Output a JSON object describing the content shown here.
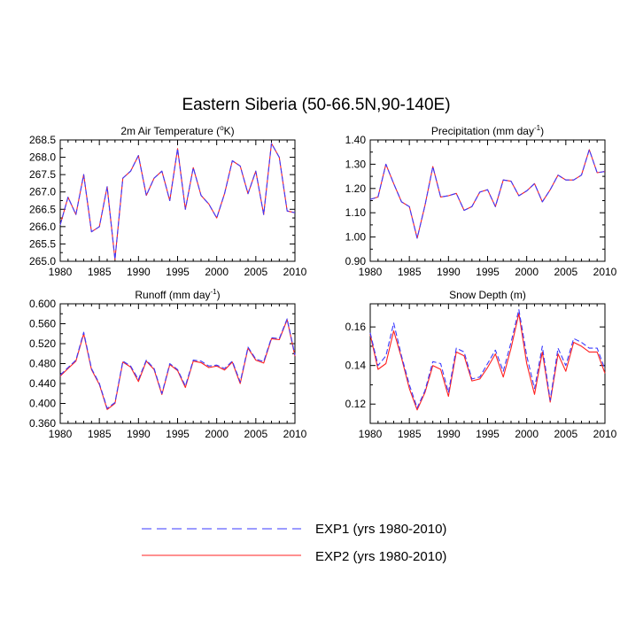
{
  "figure_title": "Eastern Siberia (50-66.5N,90-140E)",
  "colors": {
    "EXP1": "#3a3aff",
    "EXP2": "#ff2020",
    "axes": "#000000"
  },
  "legend": [
    {
      "name": "EXP1 (yrs 1980-2010)",
      "style": "dashed",
      "color": "#3a3aff"
    },
    {
      "name": "EXP2 (yrs 1980-2010)",
      "style": "solid",
      "color": "#ff2020"
    }
  ],
  "chart_data": [
    {
      "type": "line",
      "title": "2m Air Temperature (°K)",
      "title_text": "2m Air Temperature (",
      "title_sup": "o",
      "title_tail": "K)",
      "xlim": [
        1980,
        2010
      ],
      "ylim": [
        265.0,
        268.5
      ],
      "xticks": [
        1980,
        1985,
        1990,
        1995,
        2000,
        2005,
        2010
      ],
      "yticks": [
        "265.0",
        "265.5",
        "266.0",
        "266.5",
        "267.0",
        "267.5",
        "268.0",
        "268.5"
      ],
      "x": [
        1980,
        1981,
        1982,
        1983,
        1984,
        1985,
        1986,
        1987,
        1988,
        1989,
        1990,
        1991,
        1992,
        1993,
        1994,
        1995,
        1996,
        1997,
        1998,
        1999,
        2000,
        2001,
        2002,
        2003,
        2004,
        2005,
        2006,
        2007,
        2008,
        2009,
        2010
      ],
      "series": [
        {
          "name": "EXP1",
          "values": [
            266.05,
            266.85,
            266.35,
            267.5,
            265.85,
            266.0,
            267.15,
            265.05,
            267.4,
            267.6,
            268.05,
            266.9,
            267.4,
            267.6,
            266.75,
            268.25,
            266.5,
            267.7,
            266.9,
            266.65,
            266.25,
            266.95,
            267.9,
            267.75,
            266.95,
            267.6,
            266.35,
            268.4,
            268.0,
            266.45,
            266.4
          ]
        },
        {
          "name": "EXP2",
          "values": [
            266.05,
            266.85,
            266.35,
            267.5,
            265.85,
            266.0,
            267.15,
            265.05,
            267.4,
            267.6,
            268.05,
            266.9,
            267.4,
            267.6,
            266.75,
            268.25,
            266.5,
            267.7,
            266.9,
            266.65,
            266.25,
            266.95,
            267.9,
            267.75,
            266.95,
            267.6,
            266.35,
            268.4,
            268.0,
            266.45,
            266.4
          ]
        }
      ]
    },
    {
      "type": "line",
      "title": "Precipitation (mm day-1)",
      "title_text": "Precipitation (mm day",
      "title_sup": "-1",
      "title_tail": ")",
      "xlim": [
        1980,
        2010
      ],
      "ylim": [
        0.9,
        1.4
      ],
      "xticks": [
        1980,
        1985,
        1990,
        1995,
        2000,
        2005,
        2010
      ],
      "yticks": [
        "0.90",
        "1.00",
        "1.10",
        "1.20",
        "1.30",
        "1.40"
      ],
      "x": [
        1980,
        1981,
        1982,
        1983,
        1984,
        1985,
        1986,
        1987,
        1988,
        1989,
        1990,
        1991,
        1992,
        1993,
        1994,
        1995,
        1996,
        1997,
        1998,
        1999,
        2000,
        2001,
        2002,
        2003,
        2004,
        2005,
        2006,
        2007,
        2008,
        2009,
        2010
      ],
      "series": [
        {
          "name": "EXP1",
          "values": [
            1.155,
            1.165,
            1.3,
            1.22,
            1.145,
            1.125,
            0.995,
            1.13,
            1.29,
            1.165,
            1.17,
            1.18,
            1.11,
            1.125,
            1.185,
            1.195,
            1.125,
            1.235,
            1.23,
            1.17,
            1.19,
            1.22,
            1.145,
            1.195,
            1.255,
            1.235,
            1.235,
            1.255,
            1.36,
            1.265,
            1.27
          ]
        },
        {
          "name": "EXP2",
          "values": [
            1.155,
            1.165,
            1.3,
            1.22,
            1.145,
            1.125,
            0.995,
            1.13,
            1.29,
            1.165,
            1.17,
            1.18,
            1.11,
            1.125,
            1.185,
            1.195,
            1.125,
            1.235,
            1.23,
            1.17,
            1.19,
            1.22,
            1.145,
            1.195,
            1.255,
            1.235,
            1.235,
            1.255,
            1.36,
            1.265,
            1.27
          ]
        }
      ]
    },
    {
      "type": "line",
      "title": "Runoff (mm day-1)",
      "title_text": "Runoff (mm day",
      "title_sup": "-1",
      "title_tail": ")",
      "xlim": [
        1980,
        2010
      ],
      "ylim": [
        0.36,
        0.6
      ],
      "xticks": [
        1980,
        1985,
        1990,
        1995,
        2000,
        2005,
        2010
      ],
      "yticks": [
        "0.360",
        "0.400",
        "0.440",
        "0.480",
        "0.520",
        "0.560",
        "0.600"
      ],
      "x": [
        1980,
        1981,
        1982,
        1983,
        1984,
        1985,
        1986,
        1987,
        1988,
        1989,
        1990,
        1991,
        1992,
        1993,
        1994,
        1995,
        1996,
        1997,
        1998,
        1999,
        2000,
        2001,
        2002,
        2003,
        2004,
        2005,
        2006,
        2007,
        2008,
        2009,
        2010
      ],
      "series": [
        {
          "name": "EXP1",
          "values": [
            0.457,
            0.472,
            0.487,
            0.543,
            0.47,
            0.44,
            0.39,
            0.402,
            0.485,
            0.475,
            0.448,
            0.487,
            0.47,
            0.42,
            0.48,
            0.468,
            0.435,
            0.487,
            0.485,
            0.475,
            0.477,
            0.47,
            0.485,
            0.443,
            0.513,
            0.489,
            0.484,
            0.532,
            0.53,
            0.57,
            0.497
          ]
        },
        {
          "name": "EXP2",
          "values": [
            0.455,
            0.47,
            0.485,
            0.54,
            0.468,
            0.438,
            0.388,
            0.4,
            0.483,
            0.473,
            0.444,
            0.485,
            0.468,
            0.418,
            0.478,
            0.466,
            0.432,
            0.485,
            0.482,
            0.472,
            0.475,
            0.467,
            0.483,
            0.44,
            0.511,
            0.487,
            0.481,
            0.53,
            0.528,
            0.568,
            0.495
          ]
        }
      ]
    },
    {
      "type": "line",
      "title": "Snow Depth (m)",
      "title_text": "Snow Depth (m)",
      "title_sup": "",
      "title_tail": "",
      "xlim": [
        1980,
        2010
      ],
      "ylim": [
        0.11,
        0.172
      ],
      "xticks": [
        1980,
        1985,
        1990,
        1995,
        2000,
        2005,
        2010
      ],
      "yticks": [
        "0.12",
        "0.14",
        "0.16"
      ],
      "ytick_values": [
        0.12,
        0.14,
        0.16
      ],
      "x": [
        1980,
        1981,
        1982,
        1983,
        1984,
        1985,
        1986,
        1987,
        1988,
        1989,
        1990,
        1991,
        1992,
        1993,
        1994,
        1995,
        1996,
        1997,
        1998,
        1999,
        2000,
        2001,
        2002,
        2003,
        2004,
        2005,
        2006,
        2007,
        2008,
        2009,
        2010
      ],
      "series": [
        {
          "name": "EXP1",
          "values": [
            0.157,
            0.14,
            0.145,
            0.162,
            0.145,
            0.13,
            0.118,
            0.127,
            0.142,
            0.141,
            0.126,
            0.149,
            0.147,
            0.133,
            0.134,
            0.141,
            0.148,
            0.137,
            0.152,
            0.169,
            0.145,
            0.128,
            0.15,
            0.122,
            0.149,
            0.14,
            0.154,
            0.152,
            0.149,
            0.149,
            0.138
          ]
        },
        {
          "name": "EXP2",
          "values": [
            0.156,
            0.138,
            0.141,
            0.158,
            0.144,
            0.128,
            0.117,
            0.126,
            0.14,
            0.138,
            0.124,
            0.147,
            0.145,
            0.132,
            0.133,
            0.139,
            0.146,
            0.134,
            0.149,
            0.167,
            0.141,
            0.125,
            0.147,
            0.121,
            0.146,
            0.137,
            0.152,
            0.15,
            0.147,
            0.147,
            0.136
          ]
        }
      ]
    }
  ]
}
